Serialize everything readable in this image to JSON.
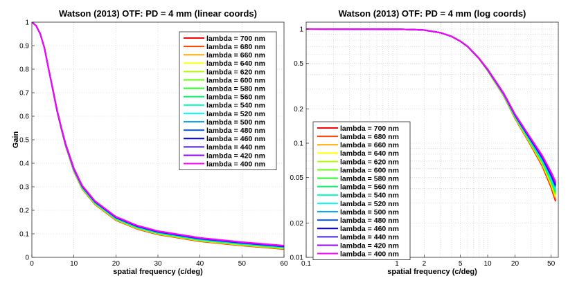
{
  "chart_data": [
    {
      "type": "line",
      "title": "Watson (2013) OTF: PD =  4 mm (linear coords)",
      "xlabel": "spatial frequency (c/deg)",
      "ylabel": "Gain",
      "xscale": "linear",
      "yscale": "linear",
      "xlim": [
        0,
        60
      ],
      "ylim": [
        0,
        1
      ],
      "xticks": [
        0,
        10,
        20,
        30,
        40,
        50,
        60
      ],
      "yticks": [
        0,
        0.1,
        0.2,
        0.3,
        0.4,
        0.5,
        0.6,
        0.7,
        0.8,
        0.9,
        1
      ],
      "xtick_labels": [
        "0",
        "10",
        "20",
        "30",
        "40",
        "50",
        "60"
      ],
      "ytick_labels": [
        "0",
        "0.1",
        "0.2",
        "0.3",
        "0.4",
        "0.5",
        "0.6",
        "0.7",
        "0.8",
        "0.9",
        "1"
      ],
      "grid": true,
      "legend": "top-right",
      "x": [
        0,
        1,
        2,
        3,
        4,
        5,
        6,
        7,
        8,
        10,
        12,
        15,
        20,
        25,
        30,
        40,
        50,
        60
      ],
      "series": [
        {
          "name": "lambda = 700 nm",
          "color": "#ff0000",
          "values": [
            1,
            0.985,
            0.95,
            0.89,
            0.8,
            0.71,
            0.62,
            0.545,
            0.475,
            0.365,
            0.29,
            0.225,
            0.158,
            0.121,
            0.097,
            0.068,
            0.05,
            0.035
          ]
        },
        {
          "name": "lambda = 680 nm",
          "color": "#ff4400",
          "values": [
            1,
            0.985,
            0.95,
            0.89,
            0.8,
            0.71,
            0.62,
            0.545,
            0.476,
            0.366,
            0.291,
            0.226,
            0.159,
            0.122,
            0.098,
            0.069,
            0.051,
            0.036
          ]
        },
        {
          "name": "lambda = 660 nm",
          "color": "#ffaa00",
          "values": [
            1,
            0.985,
            0.95,
            0.89,
            0.8,
            0.71,
            0.62,
            0.546,
            0.477,
            0.367,
            0.292,
            0.227,
            0.16,
            0.123,
            0.099,
            0.07,
            0.052,
            0.037
          ]
        },
        {
          "name": "lambda = 640 nm",
          "color": "#ffff00",
          "values": [
            1,
            0.985,
            0.95,
            0.89,
            0.8,
            0.711,
            0.621,
            0.547,
            0.478,
            0.368,
            0.293,
            0.228,
            0.161,
            0.124,
            0.1,
            0.071,
            0.053,
            0.038
          ]
        },
        {
          "name": "lambda = 620 nm",
          "color": "#b0ff00",
          "values": [
            1,
            0.985,
            0.95,
            0.89,
            0.8,
            0.711,
            0.621,
            0.547,
            0.478,
            0.369,
            0.294,
            0.229,
            0.162,
            0.125,
            0.101,
            0.072,
            0.054,
            0.039
          ]
        },
        {
          "name": "lambda = 600 nm",
          "color": "#66ff00",
          "values": [
            1,
            0.985,
            0.95,
            0.89,
            0.8,
            0.711,
            0.622,
            0.548,
            0.479,
            0.37,
            0.295,
            0.23,
            0.163,
            0.126,
            0.102,
            0.073,
            0.055,
            0.04
          ]
        },
        {
          "name": "lambda = 580 nm",
          "color": "#22ff22",
          "values": [
            1,
            0.985,
            0.95,
            0.89,
            0.8,
            0.712,
            0.622,
            0.548,
            0.479,
            0.37,
            0.296,
            0.231,
            0.164,
            0.127,
            0.103,
            0.074,
            0.056,
            0.041
          ]
        },
        {
          "name": "lambda = 560 nm",
          "color": "#00ff66",
          "values": [
            1,
            0.985,
            0.95,
            0.89,
            0.8,
            0.712,
            0.623,
            0.549,
            0.48,
            0.371,
            0.297,
            0.232,
            0.165,
            0.128,
            0.104,
            0.075,
            0.057,
            0.042
          ]
        },
        {
          "name": "lambda = 540 nm",
          "color": "#00ffbb",
          "values": [
            1,
            0.985,
            0.95,
            0.89,
            0.8,
            0.712,
            0.623,
            0.549,
            0.48,
            0.372,
            0.298,
            0.233,
            0.166,
            0.129,
            0.105,
            0.076,
            0.058,
            0.043
          ]
        },
        {
          "name": "lambda = 520 nm",
          "color": "#00ffff",
          "values": [
            1,
            0.985,
            0.95,
            0.89,
            0.8,
            0.713,
            0.624,
            0.55,
            0.481,
            0.373,
            0.299,
            0.234,
            0.167,
            0.13,
            0.106,
            0.077,
            0.059,
            0.044
          ]
        },
        {
          "name": "lambda = 500 nm",
          "color": "#00aaff",
          "values": [
            1,
            0.985,
            0.95,
            0.89,
            0.8,
            0.713,
            0.624,
            0.55,
            0.482,
            0.374,
            0.3,
            0.235,
            0.168,
            0.131,
            0.107,
            0.078,
            0.06,
            0.045
          ]
        },
        {
          "name": "lambda = 480 nm",
          "color": "#0055ff",
          "values": [
            1,
            0.985,
            0.95,
            0.89,
            0.8,
            0.713,
            0.625,
            0.551,
            0.482,
            0.375,
            0.301,
            0.236,
            0.169,
            0.132,
            0.108,
            0.079,
            0.061,
            0.046
          ]
        },
        {
          "name": "lambda = 460 nm",
          "color": "#0000dd",
          "values": [
            1,
            0.985,
            0.95,
            0.89,
            0.8,
            0.714,
            0.625,
            0.551,
            0.483,
            0.376,
            0.302,
            0.237,
            0.17,
            0.133,
            0.109,
            0.08,
            0.062,
            0.047
          ]
        },
        {
          "name": "lambda = 440 nm",
          "color": "#4422ee",
          "values": [
            1,
            0.985,
            0.95,
            0.89,
            0.8,
            0.714,
            0.626,
            0.552,
            0.484,
            0.377,
            0.303,
            0.238,
            0.171,
            0.134,
            0.11,
            0.081,
            0.063,
            0.048
          ]
        },
        {
          "name": "lambda = 420 nm",
          "color": "#9900ff",
          "values": [
            1,
            0.985,
            0.95,
            0.89,
            0.8,
            0.714,
            0.626,
            0.552,
            0.484,
            0.378,
            0.304,
            0.239,
            0.172,
            0.135,
            0.111,
            0.082,
            0.064,
            0.049
          ]
        },
        {
          "name": "lambda = 400 nm",
          "color": "#ff00ff",
          "values": [
            1,
            0.985,
            0.95,
            0.89,
            0.8,
            0.715,
            0.627,
            0.553,
            0.485,
            0.379,
            0.305,
            0.24,
            0.173,
            0.136,
            0.112,
            0.083,
            0.065,
            0.05
          ]
        }
      ]
    },
    {
      "type": "line",
      "title": "Watson (2013) OTF: PD =  4 mm (log coords)",
      "xlabel": "spatial frequency (c/deg)",
      "ylabel": "",
      "xscale": "log",
      "yscale": "log",
      "xlim": [
        0.1,
        60
      ],
      "ylim": [
        0.01,
        1.15
      ],
      "xticks": [
        0.1,
        1,
        2,
        5,
        10,
        20,
        50
      ],
      "yticks": [
        0.01,
        0.02,
        0.05,
        0.1,
        0.2,
        0.5,
        1
      ],
      "xtick_labels": [
        "0.1",
        "1",
        "2",
        "5",
        "10",
        "20",
        "50"
      ],
      "ytick_labels": [
        "0.01",
        "0.02",
        "0.05",
        "0.1",
        "0.2",
        "0.5",
        "1"
      ],
      "grid": true,
      "legend": "bottom-left",
      "x": [
        0.1,
        0.5,
        1,
        1.5,
        2,
        3,
        4,
        5,
        6,
        8,
        10,
        15,
        20,
        30,
        40,
        50,
        56
      ],
      "series": [
        {
          "name": "lambda = 700 nm",
          "color": "#ff0000",
          "values": [
            1,
            0.999,
            0.997,
            0.99,
            0.98,
            0.93,
            0.86,
            0.78,
            0.7,
            0.55,
            0.43,
            0.26,
            0.165,
            0.095,
            0.063,
            0.041,
            0.031
          ]
        },
        {
          "name": "lambda = 680 nm",
          "color": "#ff4400",
          "values": [
            1,
            0.999,
            0.997,
            0.99,
            0.98,
            0.93,
            0.86,
            0.78,
            0.7,
            0.55,
            0.431,
            0.261,
            0.166,
            0.096,
            0.064,
            0.042,
            0.032
          ]
        },
        {
          "name": "lambda = 660 nm",
          "color": "#ffaa00",
          "values": [
            1,
            0.999,
            0.997,
            0.99,
            0.98,
            0.93,
            0.86,
            0.78,
            0.7,
            0.551,
            0.432,
            0.262,
            0.167,
            0.097,
            0.065,
            0.043,
            0.033
          ]
        },
        {
          "name": "lambda = 640 nm",
          "color": "#ffff00",
          "values": [
            1,
            0.999,
            0.997,
            0.99,
            0.98,
            0.93,
            0.86,
            0.78,
            0.7,
            0.551,
            0.433,
            0.263,
            0.168,
            0.098,
            0.066,
            0.044,
            0.034
          ]
        },
        {
          "name": "lambda = 620 nm",
          "color": "#b0ff00",
          "values": [
            1,
            0.999,
            0.997,
            0.99,
            0.98,
            0.93,
            0.86,
            0.781,
            0.701,
            0.552,
            0.434,
            0.264,
            0.169,
            0.099,
            0.067,
            0.045,
            0.035
          ]
        },
        {
          "name": "lambda = 600 nm",
          "color": "#66ff00",
          "values": [
            1,
            0.999,
            0.997,
            0.99,
            0.98,
            0.93,
            0.86,
            0.781,
            0.701,
            0.552,
            0.435,
            0.265,
            0.17,
            0.1,
            0.068,
            0.046,
            0.036
          ]
        },
        {
          "name": "lambda = 580 nm",
          "color": "#22ff22",
          "values": [
            1,
            0.999,
            0.997,
            0.99,
            0.98,
            0.93,
            0.861,
            0.781,
            0.702,
            0.553,
            0.436,
            0.266,
            0.171,
            0.101,
            0.069,
            0.047,
            0.037
          ]
        },
        {
          "name": "lambda = 560 nm",
          "color": "#00ff66",
          "values": [
            1,
            0.999,
            0.997,
            0.99,
            0.98,
            0.93,
            0.861,
            0.782,
            0.702,
            0.553,
            0.437,
            0.267,
            0.172,
            0.102,
            0.07,
            0.048,
            0.038
          ]
        },
        {
          "name": "lambda = 540 nm",
          "color": "#00ffbb",
          "values": [
            1,
            0.999,
            0.997,
            0.99,
            0.98,
            0.93,
            0.861,
            0.782,
            0.703,
            0.554,
            0.438,
            0.268,
            0.173,
            0.103,
            0.071,
            0.049,
            0.039
          ]
        },
        {
          "name": "lambda = 520 nm",
          "color": "#00ffff",
          "values": [
            1,
            0.999,
            0.997,
            0.99,
            0.98,
            0.93,
            0.862,
            0.782,
            0.703,
            0.554,
            0.439,
            0.269,
            0.174,
            0.104,
            0.072,
            0.05,
            0.04
          ]
        },
        {
          "name": "lambda = 500 nm",
          "color": "#00aaff",
          "values": [
            1,
            0.999,
            0.997,
            0.99,
            0.98,
            0.93,
            0.862,
            0.783,
            0.704,
            0.555,
            0.44,
            0.27,
            0.175,
            0.105,
            0.073,
            0.051,
            0.041
          ]
        },
        {
          "name": "lambda = 480 nm",
          "color": "#0055ff",
          "values": [
            1,
            0.999,
            0.997,
            0.99,
            0.98,
            0.93,
            0.862,
            0.783,
            0.704,
            0.555,
            0.441,
            0.271,
            0.176,
            0.106,
            0.074,
            0.052,
            0.042
          ]
        },
        {
          "name": "lambda = 460 nm",
          "color": "#0000dd",
          "values": [
            1,
            0.999,
            0.997,
            0.99,
            0.98,
            0.93,
            0.863,
            0.783,
            0.705,
            0.556,
            0.442,
            0.272,
            0.177,
            0.107,
            0.075,
            0.053,
            0.043
          ]
        },
        {
          "name": "lambda = 440 nm",
          "color": "#4422ee",
          "values": [
            1,
            0.999,
            0.997,
            0.99,
            0.98,
            0.93,
            0.863,
            0.784,
            0.705,
            0.556,
            0.443,
            0.273,
            0.178,
            0.108,
            0.076,
            0.054,
            0.044
          ]
        },
        {
          "name": "lambda = 420 nm",
          "color": "#9900ff",
          "values": [
            1,
            0.999,
            0.997,
            0.99,
            0.98,
            0.93,
            0.863,
            0.784,
            0.706,
            0.557,
            0.444,
            0.274,
            0.179,
            0.109,
            0.077,
            0.055,
            0.045
          ]
        },
        {
          "name": "lambda = 400 nm",
          "color": "#ff00ff",
          "values": [
            1,
            0.999,
            0.997,
            0.99,
            0.98,
            0.93,
            0.864,
            0.784,
            0.706,
            0.557,
            0.445,
            0.275,
            0.18,
            0.11,
            0.078,
            0.056,
            0.046
          ]
        }
      ]
    }
  ]
}
